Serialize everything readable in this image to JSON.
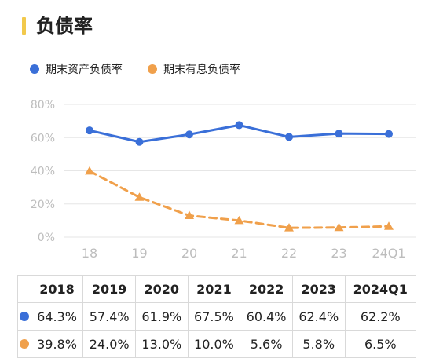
{
  "title": "负债率",
  "colors": {
    "accent": "#f2c94c",
    "series1": "#3a6fd8",
    "series2": "#f0a04b"
  },
  "chart_data": {
    "type": "line",
    "title": "负债率",
    "x": [
      "18",
      "19",
      "20",
      "21",
      "22",
      "23",
      "24Q1"
    ],
    "y_ticks": [
      "0%",
      "20%",
      "40%",
      "60%",
      "80%"
    ],
    "ylim": [
      0,
      80
    ],
    "grid": true,
    "legend": "top-left",
    "series": [
      {
        "name": "期末资产负债率",
        "values": [
          64.3,
          57.4,
          61.9,
          67.5,
          60.4,
          62.4,
          62.2
        ],
        "color": "#3a6fd8",
        "marker": "circle",
        "style": "solid"
      },
      {
        "name": "期末有息负债率",
        "values": [
          39.8,
          24.0,
          13.0,
          10.0,
          5.6,
          5.8,
          6.5
        ],
        "color": "#f0a04b",
        "marker": "triangle",
        "style": "dashed"
      }
    ]
  },
  "table": {
    "headers": [
      "2018",
      "2019",
      "2020",
      "2021",
      "2022",
      "2023",
      "2024Q1"
    ],
    "rows": [
      {
        "color": "#3a6fd8",
        "cells": [
          "64.3%",
          "57.4%",
          "61.9%",
          "67.5%",
          "60.4%",
          "62.4%",
          "62.2%"
        ]
      },
      {
        "color": "#f0a04b",
        "cells": [
          "39.8%",
          "24.0%",
          "13.0%",
          "10.0%",
          "5.6%",
          "5.8%",
          "6.5%"
        ]
      }
    ]
  }
}
